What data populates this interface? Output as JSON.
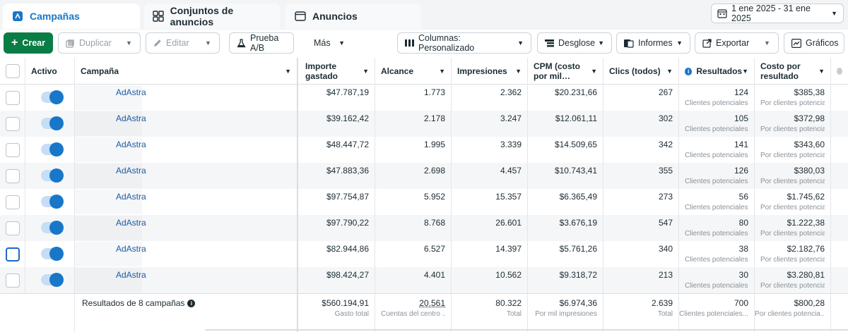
{
  "tabs": [
    {
      "label": "Campañas",
      "icon": "campaign-icon"
    },
    {
      "label": "Conjuntos de anuncios",
      "icon": "grid-icon"
    },
    {
      "label": "Anuncios",
      "icon": "ad-window-icon"
    }
  ],
  "date_range": "1 ene 2025 - 31 ene 2025",
  "toolbar": {
    "create": "Crear",
    "duplicate": "Duplicar",
    "edit": "Editar",
    "ab_test": "Prueba A/B",
    "more": "Más",
    "columns": "Columnas: Personalizado",
    "breakdown": "Desglose",
    "reports": "Informes",
    "export": "Exportar",
    "charts": "Gráficos"
  },
  "headers": {
    "active": "Activo",
    "campaign": "Campaña",
    "spent_1": "Importe",
    "spent_2": "gastado",
    "reach": "Alcance",
    "impressions": "Impresiones",
    "cpm_1": "CPM (costo",
    "cpm_2": "por mil…",
    "clicks": "Clics (todos)",
    "results": "Resultados",
    "cpr_1": "Costo por",
    "cpr_2": "resultado"
  },
  "rows": [
    {
      "campaign": "AdAstra",
      "spent": "$47.787,19",
      "reach": "1.773",
      "impressions": "2.362",
      "cpm": "$20.231,66",
      "clicks": "267",
      "results": "124",
      "results_sub": "Clientes potenciales...",
      "cpr": "$385,38",
      "cpr_sub": "Por clientes potencia..."
    },
    {
      "campaign": "AdAstra",
      "spent": "$39.162,42",
      "reach": "2.178",
      "impressions": "3.247",
      "cpm": "$12.061,11",
      "clicks": "302",
      "results": "105",
      "results_sub": "Clientes potenciales...",
      "cpr": "$372,98",
      "cpr_sub": "Por clientes potencia..."
    },
    {
      "campaign": "AdAstra",
      "spent": "$48.447,72",
      "reach": "1.995",
      "impressions": "3.339",
      "cpm": "$14.509,65",
      "clicks": "342",
      "results": "141",
      "results_sub": "Clientes potenciales...",
      "cpr": "$343,60",
      "cpr_sub": "Por clientes potencia..."
    },
    {
      "campaign": "AdAstra",
      "spent": "$47.883,36",
      "reach": "2.698",
      "impressions": "4.457",
      "cpm": "$10.743,41",
      "clicks": "355",
      "results": "126",
      "results_sub": "Clientes potenciales...",
      "cpr": "$380,03",
      "cpr_sub": "Por clientes potencia..."
    },
    {
      "campaign": "AdAstra",
      "spent": "$97.754,87",
      "reach": "5.952",
      "impressions": "15.357",
      "cpm": "$6.365,49",
      "clicks": "273",
      "results": "56",
      "results_sub": "Clientes potenciales...",
      "cpr": "$1.745,62",
      "cpr_sub": "Por clientes potencia..."
    },
    {
      "campaign": "AdAstra",
      "spent": "$97.790,22",
      "reach": "8.768",
      "impressions": "26.601",
      "cpm": "$3.676,19",
      "clicks": "547",
      "results": "80",
      "results_sub": "Clientes potenciales...",
      "cpr": "$1.222,38",
      "cpr_sub": "Por clientes potencia..."
    },
    {
      "campaign": "AdAstra",
      "spent": "$82.944,86",
      "reach": "6.527",
      "impressions": "14.397",
      "cpm": "$5.761,26",
      "clicks": "340",
      "results": "38",
      "results_sub": "Clientes potenciales...",
      "cpr": "$2.182,76",
      "cpr_sub": "Por clientes potencia..."
    },
    {
      "campaign": "AdAstra",
      "spent": "$98.424,27",
      "reach": "4.401",
      "impressions": "10.562",
      "cpm": "$9.318,72",
      "clicks": "213",
      "results": "30",
      "results_sub": "Clientes potenciales...",
      "cpr": "$3.280,81",
      "cpr_sub": "Por clientes potencia..."
    }
  ],
  "footer": {
    "label": "Resultados de 8 campañas",
    "spent": "$560.194,91",
    "spent_sub": "Gasto total",
    "reach": "20.561",
    "reach_sub": "Cuentas del centro ...",
    "impressions": "80.322",
    "impressions_sub": "Total",
    "cpm": "$6.974,36",
    "cpm_sub": "Por mil impresiones",
    "clicks": "2.639",
    "clicks_sub": "Total",
    "results": "700",
    "results_sub": "Clientes potenciales...",
    "cpr": "$800,28",
    "cpr_sub": "Por clientes potencia..."
  },
  "colors": {
    "accent": "#1877c9",
    "create_green": "#0a7d45",
    "link": "#1d5aa6"
  }
}
